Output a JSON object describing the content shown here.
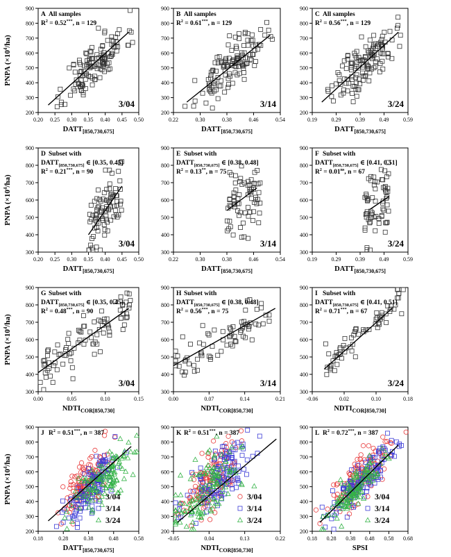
{
  "figure": {
    "ylabel_main": "PNPA (×10",
    "ylabel_sup": "4",
    "ylabel_end": "/ha)",
    "xlabel_datt_main": "DATT",
    "xlabel_datt_sub": "[850,730,675]",
    "xlabel_ndti_main": "NDTI",
    "xlabel_ndti_sub": "COR[850,730]",
    "xlabel_spsi": "SPSI",
    "dates": [
      "3/04",
      "3/14",
      "3/24"
    ],
    "colors": {
      "3/04": "#e8393a",
      "3/14": "#3a3ad6",
      "3/24": "#35b347",
      "mono": "#333333"
    }
  },
  "chart_data": [
    {
      "panel": "A",
      "type": "scatter",
      "title": "All samples",
      "stat": "R² = 0.52***, n = 129",
      "date": "3/04",
      "xlabel": "DATT[850,730,675]",
      "ylabel": "PNPA (×10⁴/ha)",
      "xlim": [
        0.2,
        0.5
      ],
      "xticks": [
        "0.20",
        "0.25",
        "0.30",
        "0.35",
        "0.40",
        "0.45",
        "0.50"
      ],
      "ylim": [
        200,
        900
      ],
      "yticks": [
        "200",
        "300",
        "400",
        "500",
        "600",
        "700",
        "800",
        "900"
      ],
      "fit": [
        [
          0.23,
          250
        ],
        [
          0.47,
          740
        ]
      ],
      "n": 129,
      "xcenter": 0.37,
      "xspread": 0.045,
      "slope": 2050,
      "intercept": -230,
      "noise": 80,
      "seed": 11
    },
    {
      "panel": "B",
      "type": "scatter",
      "title": "All samples",
      "stat": "R² = 0.61***, n = 129",
      "date": "3/14",
      "xlabel": "DATT[850,730,675]",
      "ylabel": "PNPA (×10⁴/ha)",
      "xlim": [
        0.22,
        0.54
      ],
      "xticks": [
        "0.22",
        "0.30",
        "0.38",
        "0.46",
        "0.54"
      ],
      "ylim": [
        200,
        900
      ],
      "yticks": [
        "200",
        "300",
        "400",
        "500",
        "600",
        "700",
        "800",
        "900"
      ],
      "fit": [
        [
          0.26,
          270
        ],
        [
          0.51,
          720
        ]
      ],
      "n": 129,
      "xcenter": 0.39,
      "xspread": 0.05,
      "slope": 1800,
      "intercept": -198,
      "noise": 70,
      "seed": 23
    },
    {
      "panel": "C",
      "type": "scatter",
      "title": "All samples",
      "stat": "R² = 0.56***, n = 129",
      "date": "3/24",
      "xlabel": "DATT[850,730,675]",
      "ylabel": "PNPA (×10⁴/ha)",
      "xlim": [
        0.19,
        0.59
      ],
      "xticks": [
        "0.19",
        "0.29",
        "0.39",
        "0.49",
        "0.59"
      ],
      "ylim": [
        200,
        900
      ],
      "yticks": [
        "200",
        "300",
        "400",
        "500",
        "600",
        "700",
        "800",
        "900"
      ],
      "fit": [
        [
          0.23,
          270
        ],
        [
          0.55,
          740
        ]
      ],
      "n": 129,
      "xcenter": 0.41,
      "xspread": 0.065,
      "slope": 1470,
      "intercept": -68,
      "noise": 80,
      "seed": 37
    },
    {
      "panel": "D",
      "type": "scatter",
      "title": "Subset with",
      "subset_main": "DATT",
      "subset_sub": "[850,730,675]",
      "subset_range": "∈ [0.35, 0.45]",
      "stat": "R² = 0.21***, n = 90",
      "date": "3/04",
      "xlabel": "DATT[850,730,675]",
      "ylabel": "PNPA (×10⁴/ha)",
      "xlim": [
        0.2,
        0.5
      ],
      "xticks": [
        "0.20",
        "0.25",
        "0.30",
        "0.35",
        "0.40",
        "0.45",
        "0.50"
      ],
      "ylim": [
        300,
        900
      ],
      "yticks": [
        "300",
        "400",
        "500",
        "600",
        "700",
        "800",
        "900"
      ],
      "fit": [
        [
          0.35,
          400
        ],
        [
          0.45,
          680
        ]
      ],
      "n": 90,
      "xmin": 0.35,
      "xmax": 0.45,
      "slope": 2800,
      "intercept": -580,
      "noise": 90,
      "seed": 41
    },
    {
      "panel": "E",
      "type": "scatter",
      "title": "Subset with",
      "subset_main": "DATT",
      "subset_sub": "[850,730,675]",
      "subset_range": "∈ [0.38, 0.48]",
      "stat": "R² = 0.13**, n = 75",
      "date": "3/14",
      "xlabel": "DATT[850,730,675]",
      "ylabel": "PNPA (×10⁴/ha)",
      "xlim": [
        0.22,
        0.54
      ],
      "xticks": [
        "0.22",
        "0.30",
        "0.38",
        "0.46",
        "0.54"
      ],
      "ylim": [
        300,
        900
      ],
      "yticks": [
        "300",
        "400",
        "500",
        "600",
        "700",
        "800",
        "900"
      ],
      "fit": [
        [
          0.38,
          540
        ],
        [
          0.47,
          670
        ]
      ],
      "n": 75,
      "xmin": 0.38,
      "xmax": 0.48,
      "slope": 1450,
      "intercept": -11,
      "noise": 95,
      "seed": 53
    },
    {
      "panel": "F",
      "type": "scatter",
      "title": "Subset with",
      "subset_main": "DATT",
      "subset_sub": "[850,730,675]",
      "subset_range": "∈ [0.41, 0.51]",
      "stat": "R² = 0.01ns, n = 67",
      "date": "3/24",
      "xlabel": "DATT[850,730,675]",
      "ylabel": "PNPA (×10⁴/ha)",
      "xlim": [
        0.19,
        0.59
      ],
      "xticks": [
        "0.19",
        "0.29",
        "0.39",
        "0.49",
        "0.59"
      ],
      "ylim": [
        300,
        900
      ],
      "yticks": [
        "300",
        "400",
        "500",
        "600",
        "700",
        "800",
        "900"
      ],
      "fit": [
        [
          0.43,
          545
        ],
        [
          0.51,
          620
        ]
      ],
      "n": 67,
      "xmin": 0.41,
      "xmax": 0.51,
      "slope": 900,
      "intercept": 160,
      "noise": 110,
      "seed": 67
    },
    {
      "panel": "G",
      "type": "scatter",
      "title": "Subset with",
      "subset_main": "DATT",
      "subset_sub": "[850,730,675]",
      "subset_range": "∈ [0.35, 0.45]",
      "stat": "R² = 0.48***, n = 90",
      "date": "3/04",
      "xlabel": "NDTICOR[850,730]",
      "ylabel": "PNPA (×10⁴/ha)",
      "xlim": [
        0.0,
        0.15
      ],
      "xticks": [
        "0.00",
        "0.05",
        "0.10",
        "0.15"
      ],
      "ylim": [
        300,
        900
      ],
      "yticks": [
        "300",
        "400",
        "500",
        "600",
        "700",
        "800",
        "900"
      ],
      "fit": [
        [
          0.0,
          410
        ],
        [
          0.135,
          780
        ]
      ],
      "n": 90,
      "xmin": 0.0,
      "xmax": 0.14,
      "slope": 2740,
      "intercept": 410,
      "noise": 70,
      "seed": 71
    },
    {
      "panel": "H",
      "type": "scatter",
      "title": "Subset with",
      "subset_main": "DATT",
      "subset_sub": "[850,730,675]",
      "subset_range": "∈ [0.38, 0.48]",
      "stat": "R² = 0.56***, n = 75",
      "date": "3/14",
      "xlabel": "NDTICOR[850,730]",
      "ylabel": "PNPA (×10⁴/ha)",
      "xlim": [
        0.0,
        0.21
      ],
      "xticks": [
        "0.00",
        "0.07",
        "0.14",
        "0.21"
      ],
      "ylim": [
        300,
        900
      ],
      "yticks": [
        "300",
        "400",
        "500",
        "600",
        "700",
        "800",
        "900"
      ],
      "fit": [
        [
          0.0,
          450
        ],
        [
          0.2,
          780
        ]
      ],
      "n": 75,
      "xmin": 0.0,
      "xmax": 0.2,
      "slope": 1650,
      "intercept": 450,
      "noise": 55,
      "seed": 83
    },
    {
      "panel": "I",
      "type": "scatter",
      "title": "Subset with",
      "subset_main": "DATT",
      "subset_sub": "[850,730,675]",
      "subset_range": "∈ [0.41, 0.51]",
      "stat": "R² = 0.71***, n = 67",
      "date": "3/24",
      "xlabel": "NDTICOR[850,730]",
      "ylabel": "PNPA (×10⁴/ha)",
      "xlim": [
        -0.06,
        0.18
      ],
      "xticks": [
        "-0.06",
        "0.02",
        "0.10",
        "0.18"
      ],
      "ylim": [
        300,
        900
      ],
      "yticks": [
        "300",
        "400",
        "500",
        "600",
        "700",
        "800",
        "900"
      ],
      "fit": [
        [
          -0.03,
          430
        ],
        [
          0.14,
          780
        ]
      ],
      "n": 67,
      "xmin": -0.03,
      "xmax": 0.17,
      "slope": 2060,
      "intercept": 492,
      "noise": 45,
      "seed": 97
    },
    {
      "panel": "J",
      "type": "scatter",
      "stat": "R² = 0.51***, n = 387",
      "xlabel": "DATT[850,730,675]",
      "ylabel": "PNPA (×10⁴/ha)",
      "xlim": [
        0.18,
        0.58
      ],
      "xticks": [
        "0.18",
        "0.28",
        "0.38",
        "0.48",
        "0.58"
      ],
      "ylim": [
        200,
        900
      ],
      "yticks": [
        "200",
        "300",
        "400",
        "500",
        "600",
        "700",
        "800",
        "900"
      ],
      "fit": [
        [
          0.22,
          270
        ],
        [
          0.55,
          770
        ]
      ],
      "legend": [
        "3/04",
        "3/14",
        "3/24"
      ],
      "legend_position": "bottom-right",
      "groups": [
        {
          "name": "3/04",
          "n": 129,
          "xcenter": 0.37,
          "xspread": 0.045,
          "slope": 2050,
          "intercept": -230,
          "noise": 80
        },
        {
          "name": "3/14",
          "n": 129,
          "xcenter": 0.39,
          "xspread": 0.05,
          "slope": 1800,
          "intercept": -198,
          "noise": 70
        },
        {
          "name": "3/24",
          "n": 129,
          "xcenter": 0.43,
          "xspread": 0.065,
          "slope": 1470,
          "intercept": -100,
          "noise": 80
        }
      ],
      "seed": 101
    },
    {
      "panel": "K",
      "type": "scatter",
      "stat": "R² = 0.51***, n = 387",
      "xlabel": "NDTICOR[850,730]",
      "ylabel": "PNPA (×10⁴/ha)",
      "xlim": [
        -0.05,
        0.22
      ],
      "xticks": [
        "-0.05",
        "0.04",
        "0.13",
        "0.22"
      ],
      "ylim": [
        200,
        900
      ],
      "yticks": [
        "200",
        "300",
        "400",
        "500",
        "600",
        "700",
        "800",
        "900"
      ],
      "fit": [
        [
          -0.04,
          260
        ],
        [
          0.21,
          820
        ]
      ],
      "legend": [
        "3/04",
        "3/14",
        "3/24"
      ],
      "legend_position": "bottom-right",
      "groups": [
        {
          "name": "3/04",
          "n": 129,
          "xcenter": 0.04,
          "xspread": 0.035,
          "slope": 2600,
          "intercept": 430,
          "noise": 100
        },
        {
          "name": "3/14",
          "n": 129,
          "xcenter": 0.06,
          "xspread": 0.04,
          "slope": 2200,
          "intercept": 420,
          "noise": 90
        },
        {
          "name": "3/24",
          "n": 129,
          "xcenter": 0.03,
          "xspread": 0.045,
          "slope": 2100,
          "intercept": 420,
          "noise": 100
        }
      ],
      "seed": 131
    },
    {
      "panel": "L",
      "type": "scatter",
      "stat": "R² = 0.72***, n = 387",
      "xlabel": "SPSI",
      "ylabel": "PNPA (×10⁴/ha)",
      "xlim": [
        0.18,
        0.68
      ],
      "xticks": [
        "0.18",
        "0.28",
        "0.38",
        "0.48",
        "0.58",
        "0.68"
      ],
      "ylim": [
        200,
        900
      ],
      "yticks": [
        "200",
        "300",
        "400",
        "500",
        "600",
        "700",
        "800",
        "900"
      ],
      "fit": [
        [
          0.22,
          260
        ],
        [
          0.63,
          780
        ]
      ],
      "legend": [
        "3/04",
        "3/14",
        "3/24"
      ],
      "legend_position": "bottom-right",
      "groups": [
        {
          "name": "3/04",
          "n": 129,
          "xcenter": 0.42,
          "xspread": 0.08,
          "slope": 1300,
          "intercept": 0,
          "noise": 65
        },
        {
          "name": "3/14",
          "n": 129,
          "xcenter": 0.44,
          "xspread": 0.08,
          "slope": 1270,
          "intercept": -20,
          "noise": 55
        },
        {
          "name": "3/24",
          "n": 129,
          "xcenter": 0.4,
          "xspread": 0.07,
          "slope": 1270,
          "intercept": -25,
          "noise": 55
        }
      ],
      "seed": 151
    }
  ]
}
